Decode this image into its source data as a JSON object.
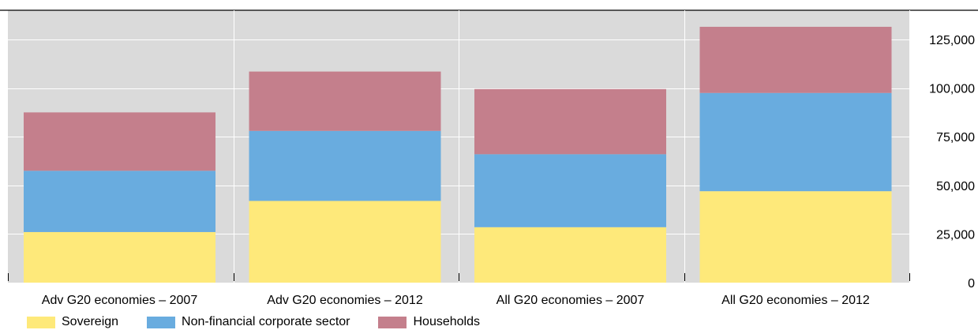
{
  "chart_data": {
    "type": "bar",
    "stacked": true,
    "categories": [
      "Adv G20 economies – 2007",
      "Adv G20 economies – 2012",
      "All G20 economies – 2007",
      "All G20 economies – 2012"
    ],
    "series": [
      {
        "name": "Sovereign",
        "color": "#fee97a",
        "values": [
          26000,
          42000,
          28500,
          47000
        ]
      },
      {
        "name": "Non-financial corporate sector",
        "color": "#69acdf",
        "values": [
          31500,
          36000,
          37500,
          50500
        ]
      },
      {
        "name": "Households",
        "color": "#c47f8c",
        "values": [
          30000,
          30500,
          33500,
          34000
        ]
      }
    ],
    "ylim": [
      0,
      140000
    ],
    "yticks": [
      "0",
      "25,000",
      "50,000",
      "75,000",
      "100,000",
      "125,000"
    ],
    "y_axis_side": "right",
    "grid": true,
    "legend_position": "bottom-left",
    "title": "",
    "xlabel": "",
    "ylabel": ""
  }
}
